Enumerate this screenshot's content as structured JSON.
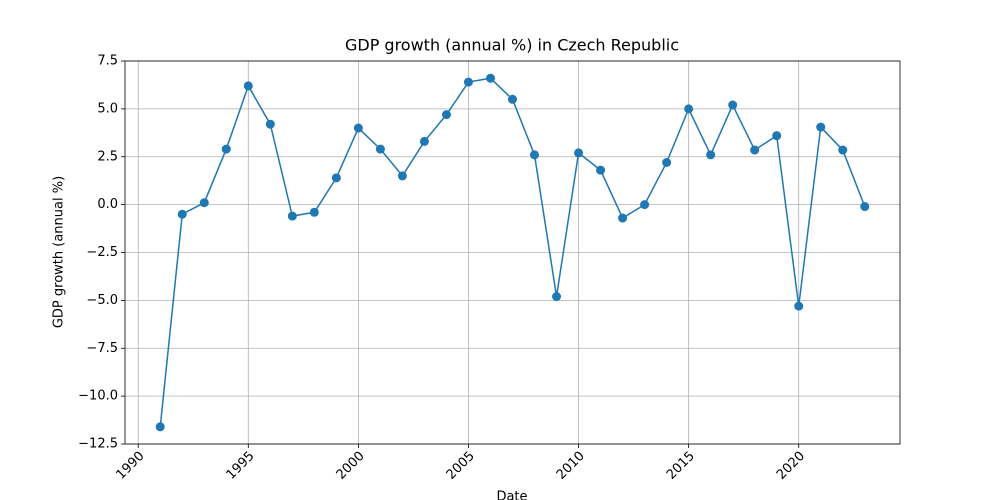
{
  "chart_data": {
    "type": "line",
    "title": "GDP growth (annual %) in Czech Republic",
    "x_label": "Date",
    "y_label": "GDP growth (annual %)",
    "x": [
      1991,
      1992,
      1993,
      1994,
      1995,
      1996,
      1997,
      1998,
      1999,
      2000,
      2001,
      2002,
      2003,
      2004,
      2005,
      2006,
      2007,
      2008,
      2009,
      2010,
      2011,
      2012,
      2013,
      2014,
      2015,
      2016,
      2017,
      2018,
      2019,
      2020,
      2021,
      2022,
      2023
    ],
    "series": [
      {
        "name": "GDP growth (annual %)",
        "color": "#1f77b4",
        "values": [
          -11.6,
          -0.5,
          0.1,
          2.9,
          6.2,
          4.2,
          -0.6,
          -0.4,
          1.4,
          4.0,
          2.9,
          1.5,
          3.3,
          4.7,
          6.4,
          6.6,
          5.5,
          2.6,
          -4.8,
          2.7,
          1.8,
          -0.7,
          0.0,
          2.2,
          5.0,
          2.6,
          5.2,
          2.85,
          3.6,
          -5.3,
          4.05,
          2.85,
          -0.1
        ]
      }
    ],
    "xlim": [
      1989.4,
      2024.6
    ],
    "xticks": [
      1990,
      1995,
      2000,
      2005,
      2010,
      2015,
      2020
    ],
    "ylim": [
      -12.5,
      7.5
    ],
    "yticks": [
      {
        "value": 7.5,
        "label": "7.5"
      },
      {
        "value": 5,
        "label": "5.0"
      },
      {
        "value": 2.5,
        "label": "2.5"
      },
      {
        "value": 0,
        "label": "0.0"
      },
      {
        "value": -2.5,
        "label": "−2.5"
      },
      {
        "value": -5,
        "label": "−5.0"
      },
      {
        "value": -7.5,
        "label": "−7.5"
      },
      {
        "value": -10,
        "label": "−10.0"
      },
      {
        "value": -12.5,
        "label": "−12.5"
      }
    ],
    "grid": true
  }
}
